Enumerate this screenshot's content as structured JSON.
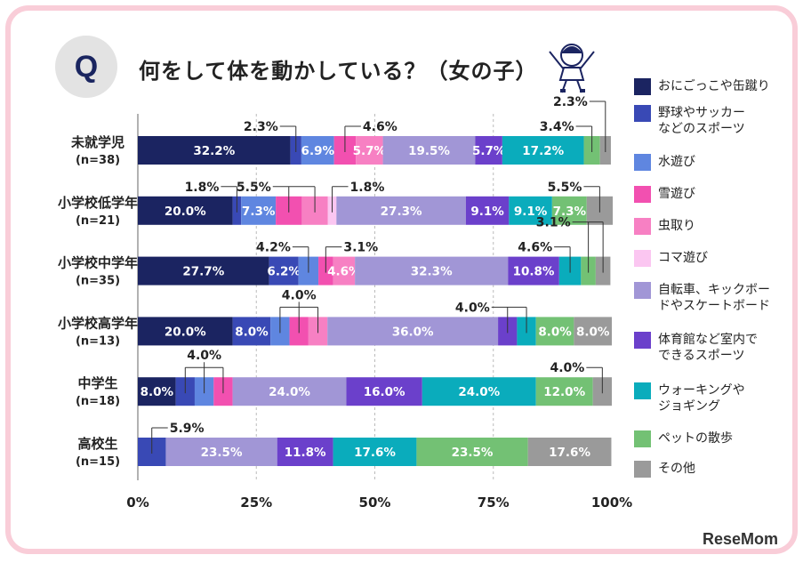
{
  "header": {
    "q": "Q",
    "title": "何をして体を動かしている？（女の子）"
  },
  "logo": "ReseMom",
  "chart_data": {
    "type": "bar",
    "orientation": "horizontal-stacked-100",
    "title": "何をして体を動かしている？（女の子）",
    "xlim": [
      0,
      100
    ],
    "xticks": [
      "0%",
      "25%",
      "50%",
      "75%",
      "100%"
    ],
    "grid": true,
    "legend_position": "right",
    "series": [
      {
        "name": "おにごっこや缶蹴り",
        "color": "#1b2461"
      },
      {
        "name": "野球やサッカー\nなどのスポーツ",
        "color": "#3949b5"
      },
      {
        "name": "水遊び",
        "color": "#5f86e0"
      },
      {
        "name": "雪遊び",
        "color": "#f250b0"
      },
      {
        "name": "虫取り",
        "color": "#f780c3"
      },
      {
        "name": "コマ遊び",
        "color": "#fbc6f1"
      },
      {
        "name": "自転車、キックボー\nドやスケートボード",
        "color": "#a196d6"
      },
      {
        "name": "体育館など室内で\nできるスポーツ",
        "color": "#6b40cb"
      },
      {
        "name": "ウォーキングや\nジョギング",
        "color": "#0aacbc"
      },
      {
        "name": "ペットの散歩",
        "color": "#73c174"
      },
      {
        "name": "その他",
        "color": "#9a9a9a"
      }
    ],
    "rows": [
      {
        "category": "未就学児",
        "n": "(n=38)",
        "values": [
          32.2,
          2.3,
          6.9,
          4.6,
          5.7,
          0,
          19.5,
          5.7,
          17.2,
          3.4,
          2.3
        ],
        "callouts": [
          {
            "label": "2.3%",
            "segments": [
              1
            ],
            "side": "left"
          },
          {
            "label": "4.6%",
            "segments": [
              3
            ],
            "side": "right"
          },
          {
            "label": "3.4%",
            "segments": [
              9
            ],
            "side": "left"
          },
          {
            "label": "2.3%",
            "segments": [
              10
            ],
            "side": "left"
          }
        ]
      },
      {
        "category": "小学校低学年",
        "n": "(n=21)",
        "values": [
          20.0,
          1.8,
          7.3,
          5.5,
          5.5,
          1.8,
          27.3,
          9.1,
          9.1,
          7.3,
          5.5
        ],
        "callouts": [
          {
            "label": "1.8%",
            "segments": [
              1
            ],
            "side": "left"
          },
          {
            "label": "5.5%",
            "segments": [
              3,
              4
            ],
            "side": "left"
          },
          {
            "label": "1.8%",
            "segments": [
              5
            ],
            "side": "right"
          },
          {
            "label": "5.5%",
            "segments": [
              10
            ],
            "side": "left"
          }
        ]
      },
      {
        "category": "小学校中学年",
        "n": "(n=35)",
        "values": [
          27.7,
          6.2,
          4.2,
          3.1,
          4.6,
          0,
          32.3,
          10.8,
          4.6,
          3.1,
          3.1
        ],
        "callouts": [
          {
            "label": "4.2%",
            "segments": [
              2
            ],
            "side": "left"
          },
          {
            "label": "3.1%",
            "segments": [
              3
            ],
            "side": "right"
          },
          {
            "label": "4.6%",
            "segments": [
              8
            ],
            "side": "left"
          },
          {
            "label": "3.1%",
            "segments": [
              9,
              10
            ],
            "side": "left"
          }
        ]
      },
      {
        "category": "小学校高学年",
        "n": "(n=13)",
        "values": [
          20.0,
          8.0,
          4.0,
          4.0,
          4.0,
          0,
          36.0,
          4.0,
          4.0,
          8.0,
          8.0
        ],
        "callouts": [
          {
            "label": "4.0%",
            "segments": [
              2,
              3,
              4
            ],
            "side": "center"
          },
          {
            "label": "4.0%",
            "segments": [
              7,
              8
            ],
            "side": "left"
          }
        ]
      },
      {
        "category": "中学生",
        "n": "(n=18)",
        "values": [
          8.0,
          4.0,
          4.0,
          4.0,
          0,
          0,
          24.0,
          16.0,
          24.0,
          12.0,
          4.0
        ],
        "callouts": [
          {
            "label": "4.0%",
            "segments": [
              1,
              2,
              3
            ],
            "side": "center"
          },
          {
            "label": "4.0%",
            "segments": [
              10
            ],
            "side": "left"
          }
        ]
      },
      {
        "category": "高校生",
        "n": "(n=15)",
        "values": [
          0,
          5.9,
          0,
          0,
          0,
          0,
          23.5,
          11.8,
          17.6,
          23.5,
          17.6
        ],
        "callouts": [
          {
            "label": "5.9%",
            "segments": [
              1
            ],
            "side": "right"
          }
        ]
      }
    ]
  }
}
